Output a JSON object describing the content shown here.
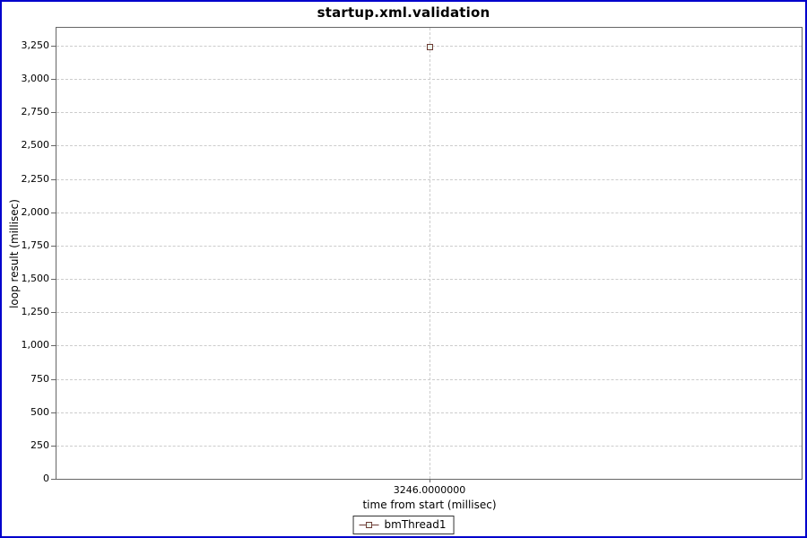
{
  "title": "startup.xml.validation",
  "colors": {
    "frame_border": "#0000cc",
    "axis_line": "#666666",
    "gridline": "#cccccc",
    "series": "#6b3a33",
    "marker_fill": "#edf5ed",
    "text": "#000000"
  },
  "y_axis": {
    "label": "loop result (millisec)",
    "ticks": [
      {
        "value": 0,
        "label": "0"
      },
      {
        "value": 250,
        "label": "250"
      },
      {
        "value": 500,
        "label": "500"
      },
      {
        "value": 750,
        "label": "750"
      },
      {
        "value": 1000,
        "label": "1,000"
      },
      {
        "value": 1250,
        "label": "1,250"
      },
      {
        "value": 1500,
        "label": "1,500"
      },
      {
        "value": 1750,
        "label": "1,750"
      },
      {
        "value": 2000,
        "label": "2,000"
      },
      {
        "value": 2250,
        "label": "2,250"
      },
      {
        "value": 2500,
        "label": "2,500"
      },
      {
        "value": 2750,
        "label": "2,750"
      },
      {
        "value": 3000,
        "label": "3,000"
      },
      {
        "value": 3250,
        "label": "3,250"
      }
    ]
  },
  "x_axis": {
    "label": "time from start (millisec)",
    "ticks": [
      {
        "value": 3246,
        "label": "3246.0000000"
      }
    ]
  },
  "legend": {
    "items": [
      {
        "label": "bmThread1",
        "marker": "square-on-line"
      }
    ]
  },
  "chart_data": {
    "type": "scatter",
    "title": "startup.xml.validation",
    "xlabel": "time from start (millisec)",
    "ylabel": "loop result (millisec)",
    "ylim": [
      0,
      3250
    ],
    "y_tick_interval": 250,
    "x_ticks": [
      3246
    ],
    "grid": true,
    "legend_position": "bottom",
    "series": [
      {
        "name": "bmThread1",
        "marker": "open-square",
        "color": "#6b3a33",
        "points": [
          {
            "x": 3246,
            "y": 3246
          }
        ]
      }
    ]
  }
}
